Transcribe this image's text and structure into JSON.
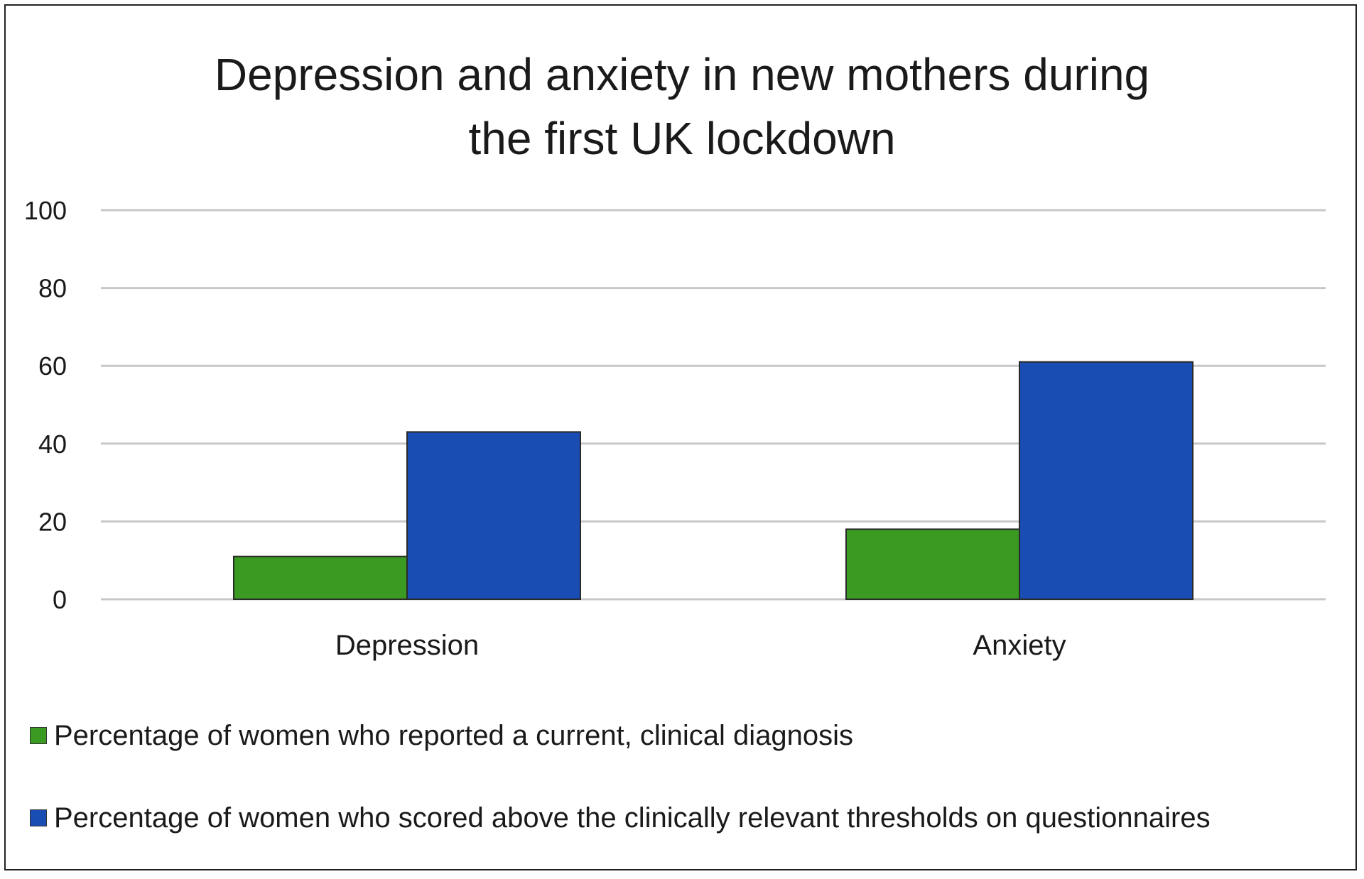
{
  "chart_data": {
    "type": "bar",
    "title": [
      "Depression and anxiety in new mothers during",
      "the first UK lockdown"
    ],
    "categories": [
      "Depression",
      "Anxiety"
    ],
    "series": [
      {
        "name": "Percentage of women who reported a current, clinical diagnosis",
        "values": [
          11,
          18
        ],
        "color": "#3a9a22"
      },
      {
        "name": "Percentage of women who scored above the clinically relevant thresholds on questionnaires",
        "values": [
          43,
          61
        ],
        "color": "#1a4db3"
      }
    ],
    "ylim": [
      0,
      100
    ],
    "yticks": [
      "0",
      "20",
      "40",
      "60",
      "80",
      "100"
    ],
    "xlabel": "",
    "ylabel": "",
    "grid": true,
    "legend_position": "bottom-left"
  }
}
